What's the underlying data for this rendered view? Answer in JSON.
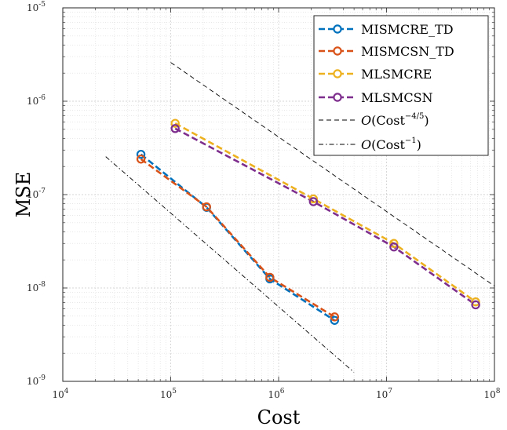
{
  "chart_data": {
    "type": "line",
    "title": "",
    "xlabel": "Cost",
    "ylabel": "MSE",
    "xscale": "log",
    "yscale": "log",
    "xlim": [
      10000,
      100000000
    ],
    "ylim": [
      1e-09,
      1e-05
    ],
    "grid": true,
    "minor_grid": true,
    "legend_position": "top-right",
    "x_ticks": [
      {
        "base": "10",
        "exp": "4",
        "value": 10000
      },
      {
        "base": "10",
        "exp": "5",
        "value": 100000
      },
      {
        "base": "10",
        "exp": "6",
        "value": 1000000
      },
      {
        "base": "10",
        "exp": "7",
        "value": 10000000
      },
      {
        "base": "10",
        "exp": "8",
        "value": 100000000
      }
    ],
    "y_ticks": [
      {
        "base": "10",
        "exp": "-9",
        "value": 1e-09
      },
      {
        "base": "10",
        "exp": "-8",
        "value": 1e-08
      },
      {
        "base": "10",
        "exp": "-7",
        "value": 1e-07
      },
      {
        "base": "10",
        "exp": "-6",
        "value": 1e-06
      },
      {
        "base": "10",
        "exp": "-5",
        "value": 1e-05
      }
    ],
    "series": [
      {
        "name": "MISMCRE_TD",
        "color": "#0072BD",
        "x": [
          53000,
          215000,
          830000,
          3300000
        ],
        "y": [
          2.7e-07,
          7.3e-08,
          1.25e-08,
          4.5e-09
        ]
      },
      {
        "name": "MISMCSN_TD",
        "color": "#D95319",
        "x": [
          53000,
          215000,
          830000,
          3300000
        ],
        "y": [
          2.4e-07,
          7.4e-08,
          1.3e-08,
          4.9e-09
        ]
      },
      {
        "name": "MLSMCRE",
        "color": "#EDB120",
        "x": [
          110000,
          2100000,
          11700000,
          67000000
        ],
        "y": [
          5.8e-07,
          9e-08,
          3e-08,
          7.1e-09
        ]
      },
      {
        "name": "MLSMCSN",
        "color": "#7E2F8E",
        "x": [
          110000,
          2100000,
          11700000,
          67000000
        ],
        "y": [
          5.1e-07,
          8.4e-08,
          2.75e-08,
          6.6e-09
        ]
      }
    ],
    "reference_lines": [
      {
        "name": "O(Cost^-4/5)",
        "color": "#000000",
        "style": "dashed",
        "x": [
          100000,
          100000000
        ],
        "y": [
          2.6e-06,
          1.05e-08
        ]
      },
      {
        "name": "O(Cost^-1)",
        "color": "#000000",
        "style": "dashdot",
        "x": [
          25000,
          5000000
        ],
        "y": [
          2.55e-07,
          1.25e-09
        ]
      }
    ],
    "legend": [
      {
        "label": "MISMCRE_TD"
      },
      {
        "label": "MISMCSN_TD"
      },
      {
        "label": "MLSMCRE"
      },
      {
        "label": "MLSMCSN"
      },
      {
        "label_prefix": "O",
        "label_base": "(Cost",
        "label_exp": "−4/5",
        "label_suffix": ")"
      },
      {
        "label_prefix": "O",
        "label_base": "(Cost",
        "label_exp": "−1",
        "label_suffix": ")"
      }
    ]
  }
}
